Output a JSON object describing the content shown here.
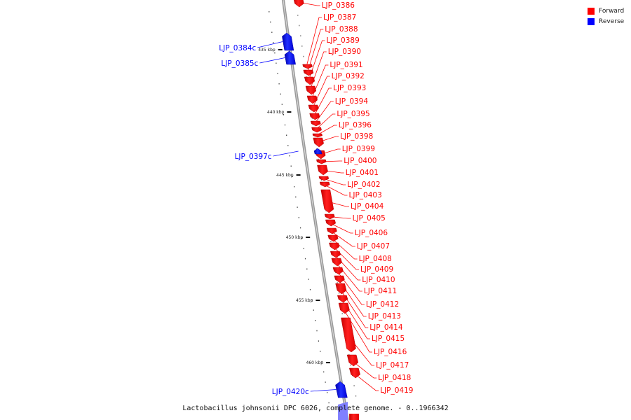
{
  "caption": "Lactobacillus johnsonii DPC 6026, complete genome. - 0..1966342",
  "colors": {
    "forward": "#ff0000",
    "reverse": "#0000ff",
    "backbone": "#888888"
  },
  "legend": [
    {
      "label": "Forward",
      "color": "#ff0000"
    },
    {
      "label": "Reverse",
      "color": "#0000ff"
    }
  ],
  "ticks": [
    {
      "label": "435 kbp"
    },
    {
      "label": "440 kbp"
    },
    {
      "label": "445 kbp"
    },
    {
      "label": "450 kbp"
    },
    {
      "label": "455 kbp"
    },
    {
      "label": "460 kbp"
    }
  ],
  "genes": [
    {
      "name": "LJP_0386",
      "strand": "forward"
    },
    {
      "name": "LJP_0387",
      "strand": "forward"
    },
    {
      "name": "LJP_0388",
      "strand": "forward"
    },
    {
      "name": "LJP_0389",
      "strand": "forward"
    },
    {
      "name": "LJP_0390",
      "strand": "forward"
    },
    {
      "name": "LJP_0391",
      "strand": "forward"
    },
    {
      "name": "LJP_0392",
      "strand": "forward"
    },
    {
      "name": "LJP_0393",
      "strand": "forward"
    },
    {
      "name": "LJP_0394",
      "strand": "forward"
    },
    {
      "name": "LJP_0395",
      "strand": "forward"
    },
    {
      "name": "LJP_0396",
      "strand": "forward"
    },
    {
      "name": "LJP_0398",
      "strand": "forward"
    },
    {
      "name": "LJP_0399",
      "strand": "forward"
    },
    {
      "name": "LJP_0400",
      "strand": "forward"
    },
    {
      "name": "LJP_0401",
      "strand": "forward"
    },
    {
      "name": "LJP_0402",
      "strand": "forward"
    },
    {
      "name": "LJP_0403",
      "strand": "forward"
    },
    {
      "name": "LJP_0404",
      "strand": "forward"
    },
    {
      "name": "LJP_0405",
      "strand": "forward"
    },
    {
      "name": "LJP_0406",
      "strand": "forward"
    },
    {
      "name": "LJP_0407",
      "strand": "forward"
    },
    {
      "name": "LJP_0408",
      "strand": "forward"
    },
    {
      "name": "LJP_0409",
      "strand": "forward"
    },
    {
      "name": "LJP_0410",
      "strand": "forward"
    },
    {
      "name": "LJP_0411",
      "strand": "forward"
    },
    {
      "name": "LJP_0412",
      "strand": "forward"
    },
    {
      "name": "LJP_0413",
      "strand": "forward"
    },
    {
      "name": "LJP_0414",
      "strand": "forward"
    },
    {
      "name": "LJP_0415",
      "strand": "forward"
    },
    {
      "name": "LJP_0416",
      "strand": "forward"
    },
    {
      "name": "LJP_0417",
      "strand": "forward"
    },
    {
      "name": "LJP_0418",
      "strand": "forward"
    },
    {
      "name": "LJP_0419",
      "strand": "forward"
    },
    {
      "name": "LJP_0384c",
      "strand": "reverse"
    },
    {
      "name": "LJP_0385c",
      "strand": "reverse"
    },
    {
      "name": "LJP_0397c",
      "strand": "reverse"
    },
    {
      "name": "LJP_0420c",
      "strand": "reverse"
    }
  ]
}
